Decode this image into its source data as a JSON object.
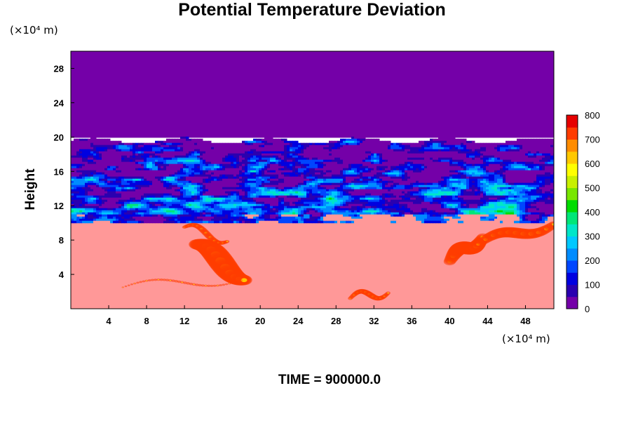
{
  "chart_data": {
    "type": "heatmap",
    "title": "Potential Temperature Deviation",
    "ylabel": "Height",
    "x_unit_label": "(×10⁴ m)",
    "y_unit_label": "(×10⁴ m)",
    "time_label": "TIME = 900000.0",
    "x_ticks": [
      4,
      8,
      12,
      16,
      20,
      24,
      28,
      32,
      36,
      40,
      44,
      48
    ],
    "y_ticks": [
      4,
      8,
      12,
      16,
      20,
      24,
      28
    ],
    "xlim": [
      0,
      51
    ],
    "ylim": [
      0,
      30
    ],
    "colorbar": {
      "ticks": [
        0,
        100,
        200,
        300,
        400,
        500,
        600,
        700,
        800
      ],
      "range": [
        0,
        800
      ]
    },
    "field": {
      "upper_layer": {
        "y_range": [
          20,
          30
        ],
        "value": 0
      },
      "mixed_layer": {
        "y_range": [
          10,
          20
        ],
        "description_values": "mixed 0-800"
      },
      "lower_layer": {
        "y_range": [
          0,
          10
        ],
        "value": 800
      }
    }
  }
}
